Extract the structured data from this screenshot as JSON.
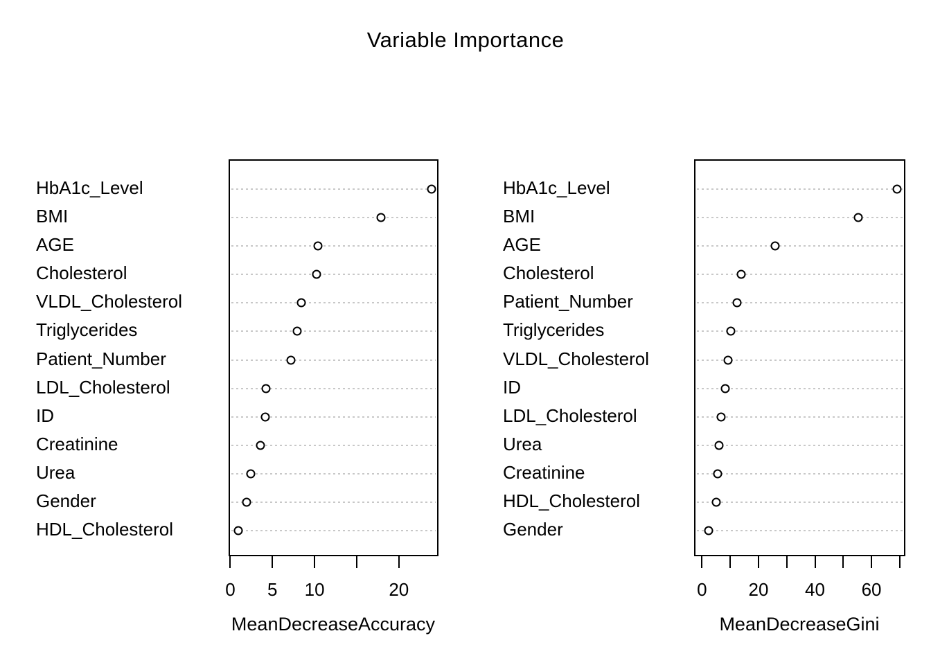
{
  "title": "Variable Importance",
  "colors": {
    "foreground": "#000000",
    "gridline": "#c8c8c8",
    "background": "#ffffff"
  },
  "chart_data": [
    {
      "type": "scatter",
      "subtype": "dot-chart",
      "panel": "left",
      "xlabel": "MeanDecreaseAccuracy",
      "xlim": [
        -0.2,
        24.7
      ],
      "grid": "dotted-horizontal",
      "marker": "open-circle",
      "categories": [
        "HbA1c_Level",
        "BMI",
        "AGE",
        "Cholesterol",
        "VLDL_Cholesterol",
        "Triglycerides",
        "Patient_Number",
        "LDL_Cholesterol",
        "ID",
        "Creatinine",
        "Urea",
        "Gender",
        "HDL_Cholesterol"
      ],
      "values": [
        23.7,
        17.7,
        10.2,
        10.1,
        8.3,
        7.8,
        7.0,
        4.1,
        4.0,
        3.4,
        2.3,
        1.8,
        0.8
      ],
      "ticks": [
        {
          "value": 0,
          "label": "0"
        },
        {
          "value": 5,
          "label": "5"
        },
        {
          "value": 10,
          "label": "10"
        },
        {
          "value": 15,
          "label": ""
        },
        {
          "value": 20,
          "label": "20"
        }
      ]
    },
    {
      "type": "scatter",
      "subtype": "dot-chart",
      "panel": "right",
      "xlabel": "MeanDecreaseGini",
      "xlim": [
        -2.8,
        72.0
      ],
      "grid": "dotted-horizontal",
      "marker": "open-circle",
      "categories": [
        "HbA1c_Level",
        "BMI",
        "AGE",
        "Cholesterol",
        "Patient_Number",
        "Triglycerides",
        "VLDL_Cholesterol",
        "ID",
        "LDL_Cholesterol",
        "Urea",
        "Creatinine",
        "HDL_Cholesterol",
        "Gender"
      ],
      "values": [
        68.6,
        54.8,
        25.5,
        13.3,
        11.9,
        9.6,
        8.8,
        7.8,
        6.3,
        5.5,
        5.1,
        4.5,
        1.9
      ],
      "ticks": [
        {
          "value": 0,
          "label": "0"
        },
        {
          "value": 10,
          "label": ""
        },
        {
          "value": 20,
          "label": "20"
        },
        {
          "value": 30,
          "label": ""
        },
        {
          "value": 40,
          "label": "40"
        },
        {
          "value": 50,
          "label": ""
        },
        {
          "value": 60,
          "label": "60"
        },
        {
          "value": 70,
          "label": ""
        }
      ]
    }
  ]
}
